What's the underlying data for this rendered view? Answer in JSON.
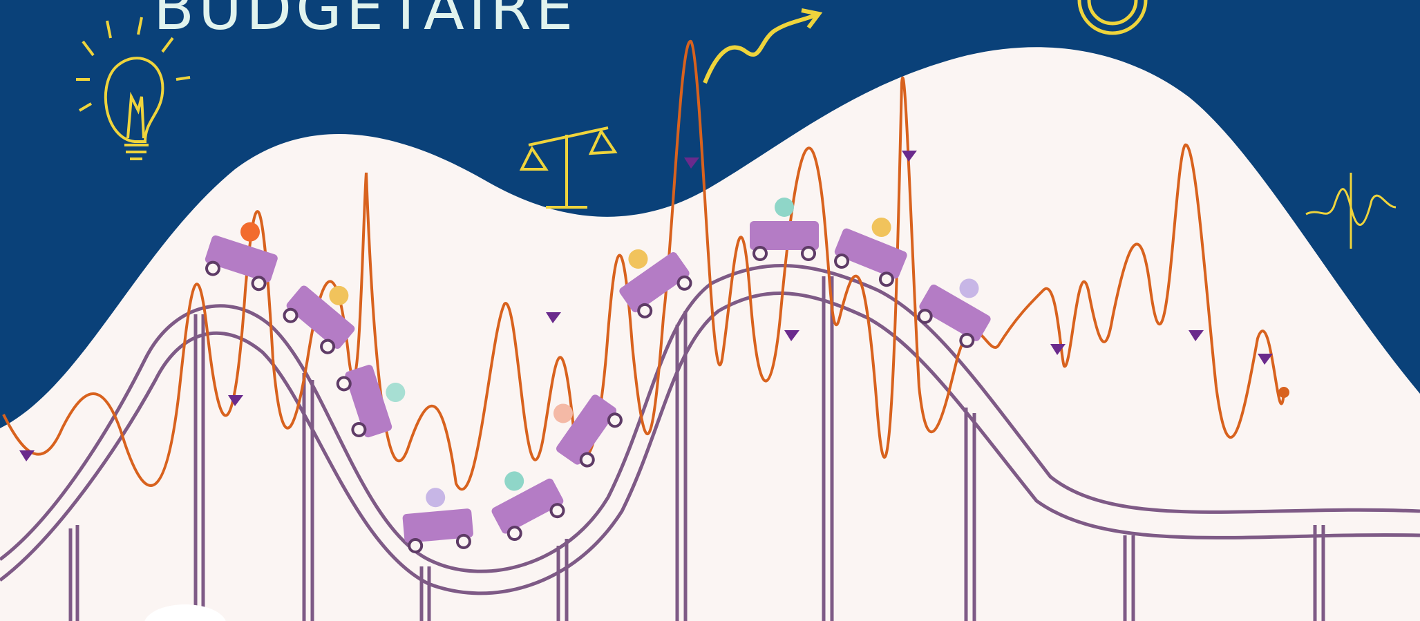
{
  "title": "BUDGETAIRE",
  "colors": {
    "background_navy": "#0a4179",
    "hill": "#fbf5f3",
    "track": "#7e5a86",
    "cart": "#b47cc5",
    "wave": "#d8621e",
    "arrow_marker": "#6a2a8c",
    "doodle": "#efd43c",
    "title": "#e1f3ee"
  },
  "icons": [
    "light-bulb-icon",
    "arrow-icon",
    "scales-icon",
    "coin-icon",
    "signal-icon"
  ]
}
